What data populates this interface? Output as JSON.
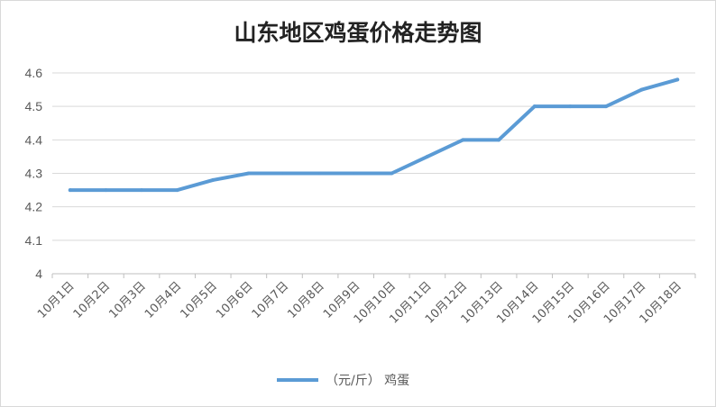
{
  "chart_data": {
    "type": "line",
    "title": "山东地区鸡蛋价格走势图",
    "categories": [
      "10月1日",
      "10月2日",
      "10月3日",
      "10月4日",
      "10月5日",
      "10月6日",
      "10月7日",
      "10月8日",
      "10月9日",
      "10月10日",
      "10月11日",
      "10月12日",
      "10月13日",
      "10月14日",
      "10月15日",
      "10月16日",
      "10月17日",
      "10月18日"
    ],
    "series": [
      {
        "name": "（元/斤） 鸡蛋",
        "values": [
          4.25,
          4.25,
          4.25,
          4.25,
          4.28,
          4.3,
          4.3,
          4.3,
          4.3,
          4.3,
          4.35,
          4.4,
          4.4,
          4.5,
          4.5,
          4.5,
          4.55,
          4.58
        ],
        "color": "#5b9bd5"
      }
    ],
    "ylim": [
      4,
      4.6
    ],
    "yticks": [
      "4",
      "4.1",
      "4.2",
      "4.3",
      "4.4",
      "4.5",
      "4.6"
    ],
    "grid": true,
    "legend_position": "bottom"
  }
}
